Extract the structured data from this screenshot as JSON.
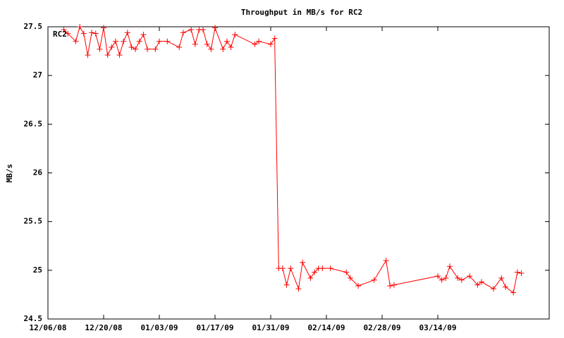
{
  "chart_data": {
    "type": "line",
    "title": "Throughput in MB/s for RC2",
    "ylabel": "MB/s",
    "x": [
      "12/10/08",
      "12/11/08",
      "12/13/08",
      "12/14/08",
      "12/15/08",
      "12/16/08",
      "12/17/08",
      "12/18/08",
      "12/19/08",
      "12/20/08",
      "12/21/08",
      "12/22/08",
      "12/23/08",
      "12/24/08",
      "12/25/08",
      "12/26/08",
      "12/27/08",
      "12/28/08",
      "12/29/08",
      "12/30/08",
      "12/31/08",
      "01/02/09",
      "01/03/09",
      "01/05/09",
      "01/08/09",
      "01/09/09",
      "01/11/09",
      "01/12/09",
      "01/13/09",
      "01/14/09",
      "01/15/09",
      "01/16/09",
      "01/17/09",
      "01/19/09",
      "01/20/09",
      "01/21/09",
      "01/22/09",
      "01/27/09",
      "01/28/09",
      "01/31/09",
      "02/01/09",
      "02/02/09",
      "02/03/09",
      "02/04/09",
      "02/05/09",
      "02/07/09",
      "02/08/09",
      "02/10/09",
      "02/11/09",
      "02/12/09",
      "02/13/09",
      "02/15/09",
      "02/19/09",
      "02/20/09",
      "02/22/09",
      "02/26/09",
      "03/01/09",
      "03/02/09",
      "03/03/09",
      "03/14/09",
      "03/15/09",
      "03/16/09",
      "03/17/09",
      "03/19/09",
      "03/20/09",
      "03/22/09",
      "03/24/09",
      "03/25/09",
      "03/28/09",
      "03/30/09",
      "03/31/09",
      "04/02/09",
      "04/03/09",
      "04/04/09"
    ],
    "series": [
      {
        "name": "RC2",
        "color": "#ff0000",
        "values": [
          27.47,
          27.43,
          27.35,
          27.5,
          27.43,
          27.21,
          27.44,
          27.43,
          27.27,
          27.49,
          27.21,
          27.29,
          27.35,
          27.21,
          27.35,
          27.44,
          27.29,
          27.27,
          27.35,
          27.42,
          27.27,
          27.27,
          27.35,
          27.35,
          27.29,
          27.44,
          27.47,
          27.32,
          27.47,
          27.47,
          27.32,
          27.27,
          27.49,
          27.27,
          27.35,
          27.29,
          27.42,
          27.32,
          27.35,
          27.32,
          27.38,
          25.02,
          25.02,
          24.85,
          25.02,
          24.81,
          25.08,
          24.92,
          24.98,
          25.02,
          25.02,
          25.02,
          24.98,
          24.92,
          24.84,
          24.9,
          25.1,
          24.84,
          24.85,
          24.94,
          24.9,
          24.92,
          25.04,
          24.92,
          24.9,
          24.94,
          24.85,
          24.88,
          24.81,
          24.92,
          24.83,
          24.77,
          24.98,
          24.97
        ]
      }
    ],
    "xlim": [
      "12/06/08",
      "04/11/09"
    ],
    "xticks": [
      "12/06/08",
      "12/20/08",
      "01/03/09",
      "01/17/09",
      "01/31/09",
      "02/14/09",
      "02/28/09",
      "03/14/09"
    ],
    "ylim": [
      24.5,
      27.5
    ],
    "yticks": [
      24.5,
      25,
      25.5,
      26,
      26.5,
      27,
      27.5
    ],
    "legend": "top-left"
  }
}
